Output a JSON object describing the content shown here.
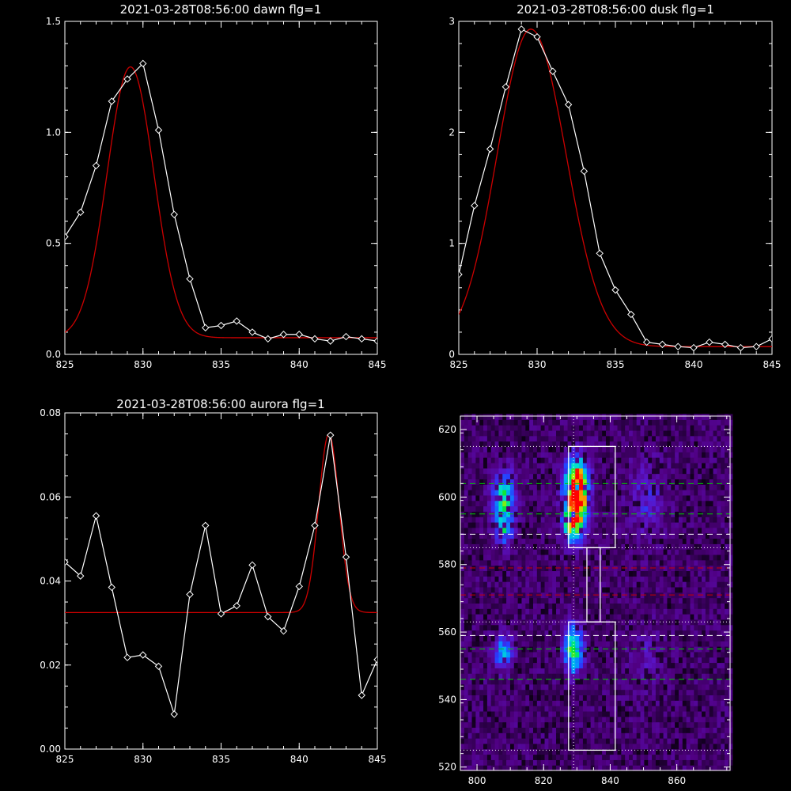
{
  "colors": {
    "background": "#000000",
    "data": "#ffffff",
    "fit": "#cc0000",
    "green_line": "#00cc00",
    "red_line": "#cc0000",
    "white_line": "#ffffff"
  },
  "chart_data": [
    {
      "id": "dawn",
      "type": "line",
      "title": "2021-03-28T08:56:00 dawn flg=1",
      "xlabel": "",
      "ylabel": "",
      "xlim": [
        825,
        845
      ],
      "ylim": [
        0,
        1.5
      ],
      "x_ticks": [
        "825",
        "830",
        "835",
        "840",
        "845"
      ],
      "y_ticks": [
        "0.0",
        "0.5",
        "1.0",
        "1.5"
      ],
      "x_tick_values": [
        825,
        830,
        835,
        840,
        845
      ],
      "y_tick_values": [
        0,
        0.5,
        1.0,
        1.5
      ],
      "grid": false,
      "series": [
        {
          "values_x": [
            825,
            826,
            827,
            828,
            829,
            830,
            831,
            832,
            833,
            834,
            835,
            836,
            837,
            838,
            839,
            840,
            841,
            842,
            843,
            844,
            845
          ],
          "values_y": [
            0.53,
            0.64,
            0.85,
            1.14,
            1.24,
            1.31,
            1.01,
            0.63,
            0.34,
            0.12,
            0.13,
            0.15,
            0.1,
            0.07,
            0.09,
            0.09,
            0.07,
            0.06,
            0.08,
            0.07,
            0.06
          ],
          "markers": true,
          "style": "data"
        },
        {
          "fit": {
            "a": 1.22,
            "mu": 829.2,
            "sigma": 1.5,
            "c": 0.075
          },
          "style": "fit"
        }
      ]
    },
    {
      "id": "dusk",
      "type": "line",
      "title": "2021-03-28T08:56:00 dusk flg=1",
      "xlabel": "",
      "ylabel": "",
      "xlim": [
        825,
        845
      ],
      "ylim": [
        0,
        3
      ],
      "x_ticks": [
        "825",
        "830",
        "835",
        "840",
        "845"
      ],
      "y_ticks": [
        "0",
        "1",
        "2",
        "3"
      ],
      "x_tick_values": [
        825,
        830,
        835,
        840,
        845
      ],
      "y_tick_values": [
        0,
        1,
        2,
        3
      ],
      "grid": false,
      "series": [
        {
          "values_x": [
            825,
            826,
            827,
            828,
            829,
            830,
            831,
            832,
            833,
            834,
            835,
            836,
            837,
            838,
            839,
            840,
            841,
            842,
            843,
            844,
            845
          ],
          "values_y": [
            0.72,
            1.34,
            1.85,
            2.41,
            2.93,
            2.86,
            2.55,
            2.25,
            1.65,
            0.91,
            0.58,
            0.36,
            0.11,
            0.09,
            0.07,
            0.06,
            0.11,
            0.09,
            0.06,
            0.07,
            0.14
          ],
          "markers": true,
          "style": "data"
        },
        {
          "fit": {
            "a": 2.86,
            "mu": 829.6,
            "sigma_left": 2.15,
            "sigma_right": 2.25,
            "c": 0.07
          },
          "style": "fit"
        }
      ]
    },
    {
      "id": "aurora",
      "type": "line",
      "title": "2021-03-28T08:56:00 aurora flg=1",
      "xlabel": "",
      "ylabel": "",
      "xlim": [
        825,
        845
      ],
      "ylim": [
        0,
        0.08
      ],
      "x_ticks": [
        "825",
        "830",
        "835",
        "840",
        "845"
      ],
      "y_ticks": [
        "0.00",
        "0.02",
        "0.04",
        "0.06",
        "0.08"
      ],
      "x_tick_values": [
        825,
        830,
        835,
        840,
        845
      ],
      "y_tick_values": [
        0,
        0.02,
        0.04,
        0.06,
        0.08
      ],
      "grid": false,
      "series": [
        {
          "values_x": [
            825,
            826,
            827,
            828,
            829,
            830,
            831,
            832,
            833,
            834,
            835,
            836,
            837,
            838,
            839,
            840,
            841,
            842,
            843,
            844,
            845
          ],
          "values_y": [
            0.0445,
            0.0412,
            0.0555,
            0.0385,
            0.0218,
            0.0224,
            0.0197,
            0.0083,
            0.0368,
            0.0532,
            0.0322,
            0.0341,
            0.0438,
            0.0315,
            0.0281,
            0.0387,
            0.0532,
            0.0747,
            0.0457,
            0.0128,
            0.0213
          ],
          "markers": true,
          "style": "data"
        },
        {
          "fit": {
            "a": 0.0425,
            "mu": 841.9,
            "sigma": 0.65,
            "c": 0.0325
          },
          "style": "fit"
        }
      ]
    },
    {
      "id": "image",
      "type": "heatmap",
      "title": "",
      "xlabel": "",
      "ylabel": "",
      "xlim": [
        795,
        876
      ],
      "ylim": [
        519,
        624
      ],
      "x_ticks": [
        "800",
        "820",
        "840",
        "860"
      ],
      "y_ticks": [
        "520",
        "540",
        "560",
        "580",
        "600",
        "620"
      ],
      "x_tick_values": [
        800,
        820,
        840,
        860
      ],
      "y_tick_values": [
        520,
        540,
        560,
        580,
        600,
        620
      ],
      "blobs": [
        {
          "x": 830,
          "y": 602,
          "sx": 2.4,
          "sy": 6.0,
          "amp": 1.0
        },
        {
          "x": 829,
          "y": 592,
          "sx": 2.2,
          "sy": 4.0,
          "amp": 0.55
        },
        {
          "x": 808,
          "y": 600,
          "sx": 2.3,
          "sy": 5.5,
          "amp": 0.52
        },
        {
          "x": 808,
          "y": 590,
          "sx": 2.0,
          "sy": 3.0,
          "amp": 0.3
        },
        {
          "x": 829,
          "y": 555,
          "sx": 2.0,
          "sy": 5.0,
          "amp": 0.55
        },
        {
          "x": 808,
          "y": 554,
          "sx": 2.0,
          "sy": 3.5,
          "amp": 0.38
        },
        {
          "x": 851,
          "y": 600,
          "sx": 3.5,
          "sy": 8.0,
          "amp": 0.16
        },
        {
          "x": 851,
          "y": 553,
          "sx": 3.5,
          "sy": 7.0,
          "amp": 0.1
        }
      ],
      "hlines": [
        {
          "y": 615,
          "style": "dotted",
          "color": "white"
        },
        {
          "y": 604,
          "style": "dashed",
          "color": "green"
        },
        {
          "y": 595,
          "style": "dashed",
          "color": "green"
        },
        {
          "y": 589,
          "style": "dashed",
          "color": "white"
        },
        {
          "y": 585,
          "style": "dotted",
          "color": "white"
        },
        {
          "y": 579,
          "style": "dashed",
          "color": "red"
        },
        {
          "y": 571,
          "style": "dashed",
          "color": "red"
        },
        {
          "y": 563,
          "style": "dotted",
          "color": "white"
        },
        {
          "y": 559,
          "style": "dashed",
          "color": "white"
        },
        {
          "y": 555,
          "style": "dashed",
          "color": "green"
        },
        {
          "y": 546,
          "style": "dashed",
          "color": "green"
        },
        {
          "y": 525,
          "style": "dotted",
          "color": "white"
        }
      ],
      "vlines": [
        {
          "x": 829,
          "style": "dotted",
          "color": "white"
        }
      ],
      "boxes": [
        {
          "x0": 827.5,
          "x1": 841.5,
          "y0": 585,
          "y1": 615
        },
        {
          "x0": 833,
          "x1": 837,
          "y0": 563,
          "y1": 585
        },
        {
          "x0": 827.5,
          "x1": 841.5,
          "y0": 525,
          "y1": 563
        }
      ]
    }
  ]
}
